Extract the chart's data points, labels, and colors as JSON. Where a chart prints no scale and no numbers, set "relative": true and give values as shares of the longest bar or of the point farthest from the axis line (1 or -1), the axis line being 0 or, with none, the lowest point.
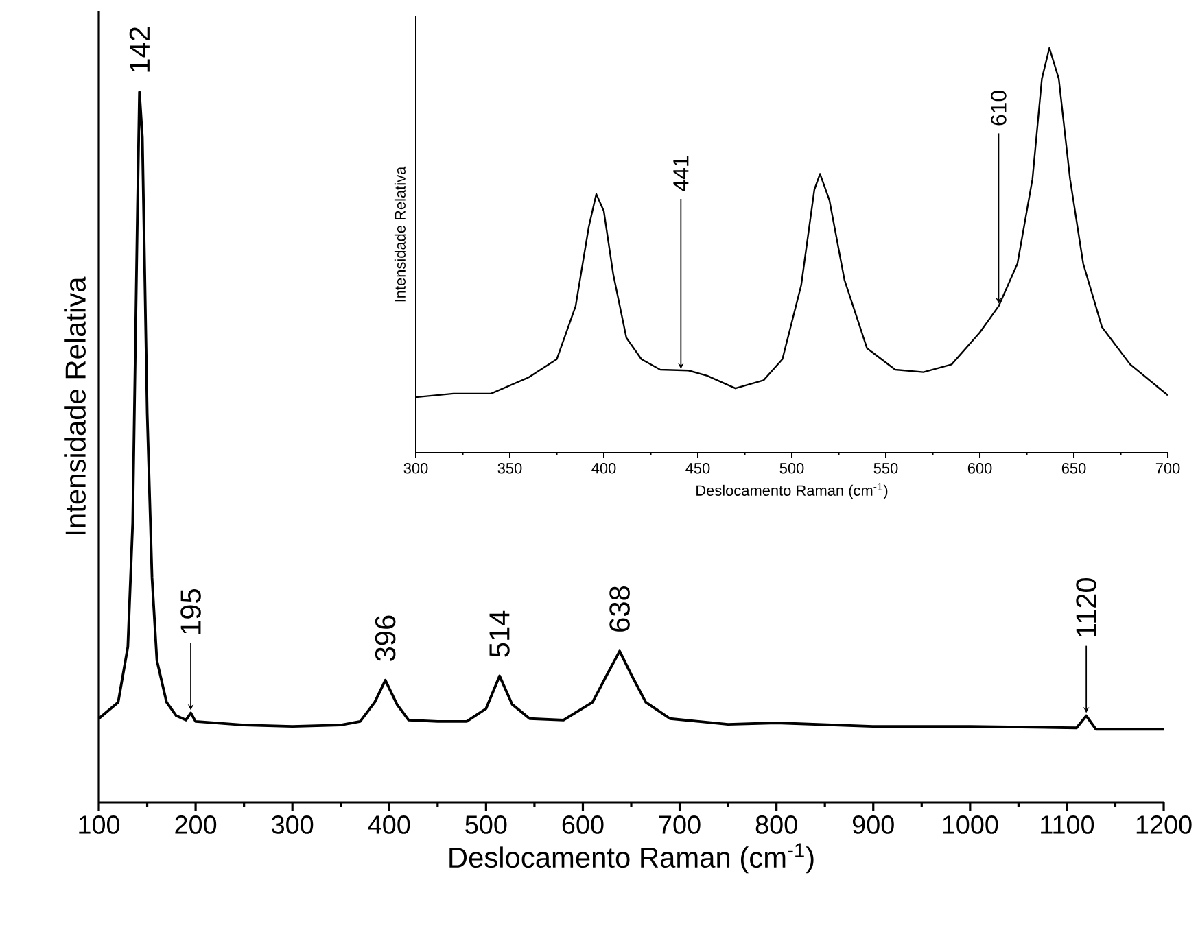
{
  "chart_data": [
    {
      "type": "line",
      "relative": true,
      "xlabel": "Deslocamento Raman (cm$^{-1}$)",
      "ylabel": "Intensidade Relativa",
      "xlim": [
        100,
        1200
      ],
      "xticks": [
        100,
        200,
        300,
        400,
        500,
        600,
        700,
        800,
        900,
        1000,
        1100,
        1200
      ],
      "series": [
        {
          "color": "#000000",
          "x": [
            100,
            120,
            130,
            135,
            140,
            142,
            145,
            150,
            155,
            160,
            170,
            180,
            190,
            195,
            200,
            250,
            300,
            350,
            370,
            385,
            396,
            408,
            420,
            450,
            480,
            500,
            514,
            527,
            545,
            580,
            610,
            625,
            638,
            650,
            665,
            690,
            750,
            800,
            900,
            1000,
            1110,
            1120,
            1130,
            1200
          ],
          "values": [
            0.118,
            0.141,
            0.219,
            0.393,
            0.839,
            1,
            0.936,
            0.548,
            0.316,
            0.2,
            0.141,
            0.122,
            0.116,
            0.126,
            0.114,
            0.109,
            0.107,
            0.109,
            0.114,
            0.141,
            0.172,
            0.138,
            0.116,
            0.114,
            0.114,
            0.132,
            0.178,
            0.138,
            0.118,
            0.116,
            0.141,
            0.18,
            0.213,
            0.18,
            0.141,
            0.118,
            0.11,
            0.112,
            0.107,
            0.107,
            0.105,
            0.122,
            0.103,
            0.103
          ]
        }
      ],
      "annotations": [
        {
          "text": "142",
          "x": 142,
          "y": 1
        },
        {
          "text": "195",
          "x": 195,
          "y": 0.126
        },
        {
          "text": "396",
          "x": 396,
          "y": 0.172
        },
        {
          "text": "514",
          "x": 514,
          "y": 0.178
        },
        {
          "text": "638",
          "x": 638,
          "y": 0.213
        },
        {
          "text": "1120",
          "x": 1120,
          "y": 0.122
        }
      ]
    },
    {
      "type": "line",
      "relative": true,
      "xlabel": "Deslocamento Raman (cm$^{-1}$)",
      "ylabel": "Intensidade Relativa",
      "xlim": [
        300,
        700
      ],
      "xticks": [
        300,
        350,
        400,
        450,
        500,
        550,
        600,
        650,
        700
      ],
      "series": [
        {
          "color": "#000000",
          "x": [
            300,
            320,
            340,
            360,
            375,
            385,
            392,
            396,
            400,
            405,
            412,
            420,
            430,
            445,
            455,
            470,
            485,
            495,
            505,
            512,
            515,
            520,
            528,
            540,
            555,
            570,
            585,
            600,
            610,
            620,
            628,
            633,
            637,
            642,
            648,
            655,
            665,
            680,
            700
          ],
          "values": [
            0.137,
            0.146,
            0.146,
            0.186,
            0.231,
            0.362,
            0.558,
            0.639,
            0.597,
            0.441,
            0.284,
            0.231,
            0.205,
            0.203,
            0.19,
            0.159,
            0.179,
            0.231,
            0.414,
            0.65,
            0.689,
            0.624,
            0.427,
            0.258,
            0.205,
            0.199,
            0.218,
            0.297,
            0.362,
            0.467,
            0.676,
            0.924,
            1,
            0.924,
            0.676,
            0.467,
            0.31,
            0.218,
            0.142
          ]
        }
      ],
      "annotations": [
        {
          "text": "441",
          "x": 441,
          "y": 0.2
        },
        {
          "text": "610",
          "x": 610,
          "y": 0.362
        }
      ]
    }
  ]
}
